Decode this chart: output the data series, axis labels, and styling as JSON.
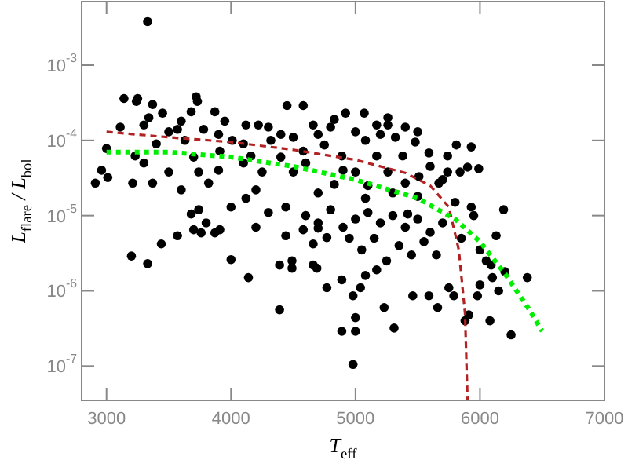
{
  "chart_data": {
    "type": "scatter",
    "xlabel": "T$_{eff}$",
    "ylabel": "L$_{flare}$ / L$_{bol}$",
    "log": "y",
    "grid": false,
    "xlim": [
      2800,
      7000
    ],
    "xticks": [
      3000,
      4000,
      5000,
      6000,
      7000
    ],
    "ylim": [
      3.5e-08,
      0.007
    ],
    "yticks": [
      {
        "value": 0.001,
        "label": "10$^{-3}$"
      },
      {
        "value": 0.0001,
        "label": "10$^{-4}$"
      },
      {
        "value": 1e-05,
        "label": "10$^{-5}$"
      },
      {
        "value": 1e-06,
        "label": "10$^{-6}$"
      },
      {
        "value": 1e-07,
        "label": "10$^{-7}$"
      }
    ],
    "series": [
      {
        "color": "#000000",
        "marker": "circle",
        "x": [
          3330,
          3200,
          3330,
          3440,
          3570,
          3700,
          3760,
          3870,
          3910,
          4000,
          4140,
          4390,
          4390,
          4490,
          4490,
          4440,
          4580,
          4660,
          4700,
          4770,
          4660,
          4690,
          4770,
          4890,
          4890,
          4980,
          5000,
          5000,
          4980,
          5040,
          5080,
          5170,
          5230,
          5310,
          5460,
          5590,
          5660,
          5750,
          5790,
          5880,
          5910,
          5980,
          6080,
          6250,
          6380,
          6130,
          6090,
          2910,
          2960,
          3010,
          3000,
          3140,
          3110,
          3240,
          3250,
          3340,
          3300,
          3370,
          3450,
          3230,
          3210,
          3370,
          3500,
          3570,
          3630,
          3720,
          3730,
          3680,
          3780,
          3740,
          3740,
          3680,
          3870,
          3950,
          4010,
          3910,
          3820,
          4120,
          4160,
          4120,
          4250,
          4220,
          4320,
          4450,
          4580,
          4580,
          4500,
          4440,
          4660,
          4750,
          4830,
          4920,
          5070,
          4890,
          5000,
          4830,
          5080,
          5170,
          5260,
          5260,
          5320,
          5080,
          5170,
          5260,
          5380,
          5480,
          5400,
          5420,
          5590,
          5510,
          5670,
          5740,
          5810,
          5930,
          5900,
          5840,
          5990,
          5800,
          5930,
          5950,
          6190,
          5740,
          4600,
          4700,
          4800,
          4900,
          5000,
          5100,
          5200,
          5300,
          5400,
          5500,
          5600,
          5700,
          5150,
          5350,
          5450,
          5550,
          5050,
          4950,
          5250,
          5650,
          5850,
          6000,
          6050,
          6100,
          6150,
          6000,
          6200,
          4300,
          4000,
          3800,
          4200,
          3500,
          3600,
          3900,
          4100,
          4300,
          4400,
          4500,
          4700,
          4800,
          5000,
          5200,
          5400,
          5500,
          5600,
          5700,
          3300,
          3400,
          3700,
          3900,
          4100,
          4400,
          4600,
          4900,
          5100,
          5300,
          3600,
          4200,
          4700,
          5500
        ],
        "values": [
          0.0038,
          2.9e-06,
          2.3e-06,
          4.2e-06,
          5.4e-06,
          6.5e-06,
          5.9e-06,
          5.9e-06,
          6.5e-06,
          2.6e-06,
          1.5e-06,
          5.6e-07,
          2.2e-06,
          2.5e-06,
          2e-06,
          5.4e-06,
          6.5e-06,
          4.2e-06,
          6.8e-06,
          5.1e-06,
          2.2e-06,
          2e-06,
          1.1e-06,
          2.9e-07,
          1.4e-06,
          8.6e-07,
          4.4e-07,
          2.9e-07,
          1.05e-07,
          1.1e-06,
          1.6e-06,
          1.9e-06,
          6e-07,
          3.2e-07,
          8.6e-07,
          8.6e-07,
          6e-07,
          1.1e-06,
          8.6e-07,
          4e-07,
          4.8e-07,
          8.6e-07,
          4e-07,
          2.6e-07,
          1.5e-06,
          5.4e-06,
          2.2e-06,
          2.7e-05,
          4e-05,
          3.2e-05,
          7.8e-05,
          0.00036,
          0.00015,
          0.00033,
          0.00036,
          0.0002,
          0.00016,
          0.0003,
          0.00023,
          6.2e-05,
          2.7e-05,
          2.7e-05,
          3.8e-05,
          0.00014,
          0.0001,
          0.00038,
          0.00033,
          0.00024,
          0.00014,
          3.8e-05,
          1.2e-05,
          1.05e-05,
          0.00024,
          0.00018,
          0.0001,
          7.2e-05,
          2.7e-05,
          0.00016,
          6.2e-05,
          1.7e-05,
          3.8e-05,
          0.00016,
          0.0001,
          0.00029,
          0.00029,
          7.2e-05,
          3.8e-05,
          1.3e-05,
          0.00016,
          8.7e-05,
          0.00019,
          0.00023,
          0.00023,
          6.2e-05,
          3.8e-05,
          2.6e-05,
          1.7e-05,
          0.00016,
          0.0002,
          0.00016,
          0.00011,
          0.0001,
          6.2e-05,
          3.8e-05,
          6.2e-05,
          9.5e-05,
          2.7e-05,
          1.05e-05,
          6.8e-05,
          3.3e-05,
          2.7e-05,
          3.8e-05,
          8.7e-05,
          8.2e-05,
          4.4e-05,
          3.8e-05,
          4.2e-05,
          1.5e-05,
          1.3e-05,
          1e-05,
          1.2e-05,
          6.2e-05,
          1e-05,
          8e-06,
          1.2e-05,
          7e-06,
          9e-06,
          1.1e-05,
          8e-06,
          1e-05,
          7e-06,
          9e-06,
          6e-06,
          8e-06,
          5e-06,
          4e-06,
          3e-06,
          4.5e-06,
          3.5e-06,
          5e-06,
          2.5e-06,
          3e-06,
          5e-06,
          3.5e-06,
          2.5e-06,
          1.5e-06,
          1e-06,
          1.2e-06,
          1.8e-06,
          1.1e-05,
          1.3e-05,
          8e-06,
          7e-06,
          0.00013,
          0.00018,
          0.00012,
          9e-05,
          0.00015,
          0.00012,
          0.00011,
          0.00012,
          0.00015,
          0.00013,
          0.00012,
          0.00015,
          0.00013,
          4.5e-05,
          3e-05,
          5e-05,
          9e-05,
          6e-05,
          4e-05,
          5e-05,
          6e-05,
          5e-05,
          4e-05,
          2.5e-05,
          2e-05,
          2.2e-05,
          2.2e-05,
          2e-05,
          1.8e-05
        ]
      },
      {
        "type": "line",
        "color": "#b22222",
        "line_style": "dashed",
        "x": [
          3000,
          3500,
          4000,
          4500,
          5000,
          5400,
          5600,
          5750,
          5830,
          5880,
          5900
        ],
        "values": [
          0.00013,
          0.00011,
          9.5e-05,
          7.5e-05,
          5.5e-05,
          3.7e-05,
          2.5e-05,
          1.3e-05,
          3.5e-06,
          5e-07,
          3.5e-08
        ]
      },
      {
        "type": "line",
        "color": "#00ee00",
        "line_style": "dotted",
        "x": [
          3000,
          3500,
          4000,
          4500,
          5000,
          5500,
          5800,
          6000,
          6200,
          6400,
          6500
        ],
        "values": [
          7e-05,
          7e-05,
          6e-05,
          4.5e-05,
          3e-05,
          1.7e-05,
          9e-06,
          4.5e-06,
          1.7e-06,
          5.5e-07,
          2.9e-07
        ]
      }
    ]
  }
}
